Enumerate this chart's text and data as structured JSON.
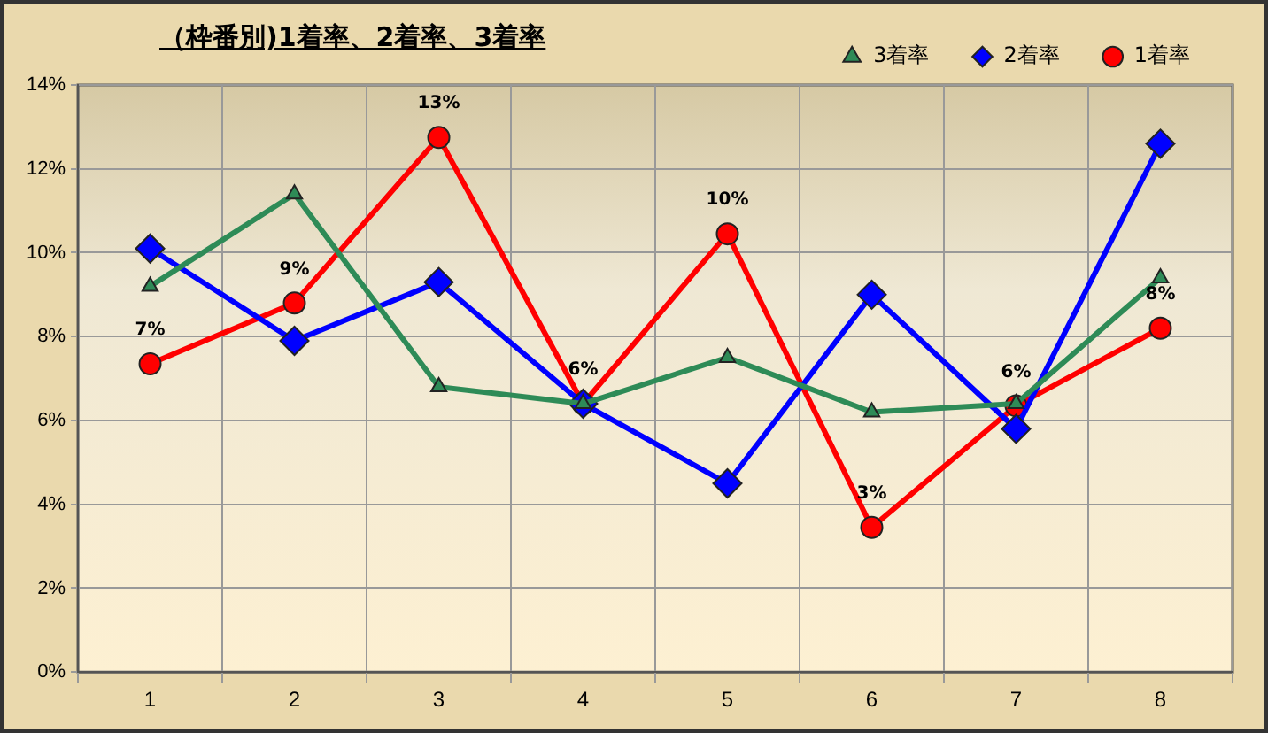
{
  "chart_data": {
    "type": "line",
    "title": "（枠番別)1着率、2着率、3着率",
    "categories": [
      "1",
      "2",
      "3",
      "4",
      "5",
      "6",
      "7",
      "8"
    ],
    "series": [
      {
        "name": "3着率",
        "color": "#2e8b57",
        "marker": "triangle",
        "values": [
          9.2,
          11.4,
          6.8,
          6.4,
          7.5,
          6.2,
          6.4,
          9.4
        ]
      },
      {
        "name": "2着率",
        "color": "#0000ff",
        "marker": "diamond",
        "values": [
          10.1,
          7.9,
          9.3,
          6.4,
          4.5,
          9.0,
          5.8,
          12.6
        ]
      },
      {
        "name": "1着率",
        "color": "#ff0000",
        "marker": "circle",
        "values": [
          7.35,
          8.8,
          12.75,
          6.4,
          10.45,
          3.45,
          6.35,
          8.2
        ],
        "value_labels": [
          "7%",
          "9%",
          "13%",
          "6%",
          "10%",
          "3%",
          "6%",
          "8%"
        ]
      }
    ],
    "ylim": [
      0,
      14
    ],
    "yticks": [
      {
        "value": 0,
        "label": "0%"
      },
      {
        "value": 2,
        "label": "2%"
      },
      {
        "value": 4,
        "label": "4%"
      },
      {
        "value": 6,
        "label": "6%"
      },
      {
        "value": 8,
        "label": "8%"
      },
      {
        "value": 10,
        "label": "10%"
      },
      {
        "value": 12,
        "label": "12%"
      },
      {
        "value": 14,
        "label": "14%"
      }
    ],
    "grid": true,
    "legend": "top right",
    "line_style": "solid"
  }
}
